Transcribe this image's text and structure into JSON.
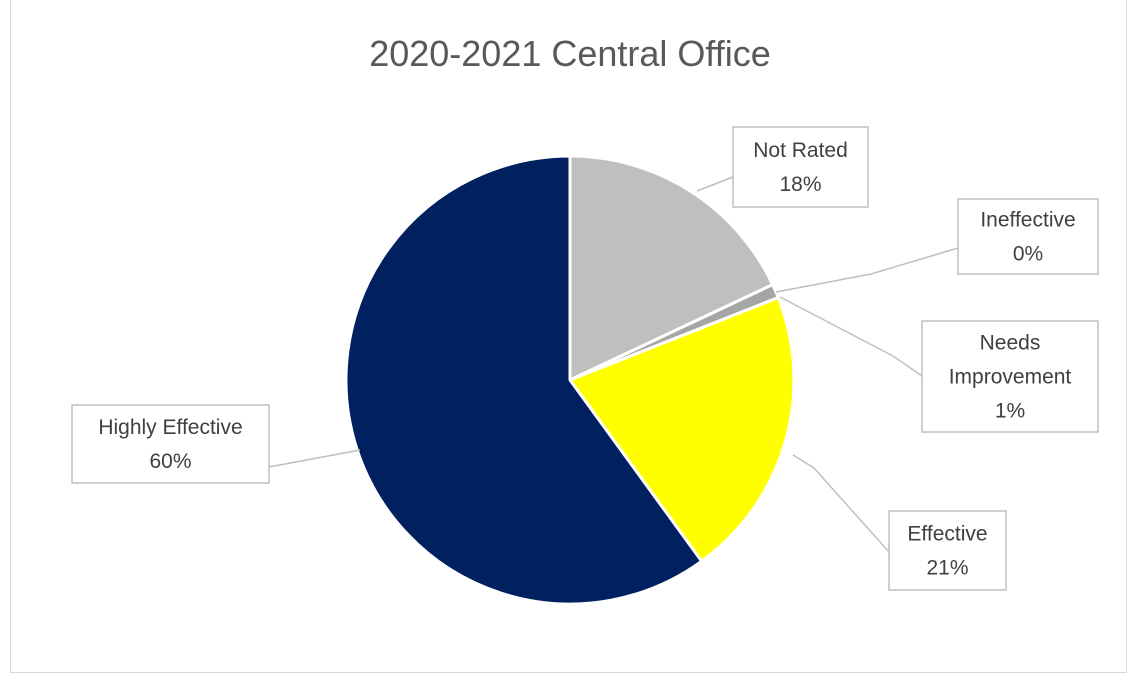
{
  "chart_data": {
    "type": "pie",
    "title": "2020-2021 Central Office",
    "legend": "none",
    "slices": [
      {
        "label": "Not Rated",
        "value": 18,
        "value_label": "18%",
        "color": "#bfbfbf"
      },
      {
        "label": "Ineffective",
        "value": 0,
        "value_label": "0%",
        "color": "#c00000"
      },
      {
        "label": "Needs Improvement",
        "value": 1,
        "value_label": "1%",
        "color": "#a5a5a5"
      },
      {
        "label": "Effective",
        "value": 21,
        "value_label": "21%",
        "color": "#ffff00"
      },
      {
        "label": "Highly Effective",
        "value": 60,
        "value_label": "60%",
        "color": "#002060"
      }
    ]
  }
}
